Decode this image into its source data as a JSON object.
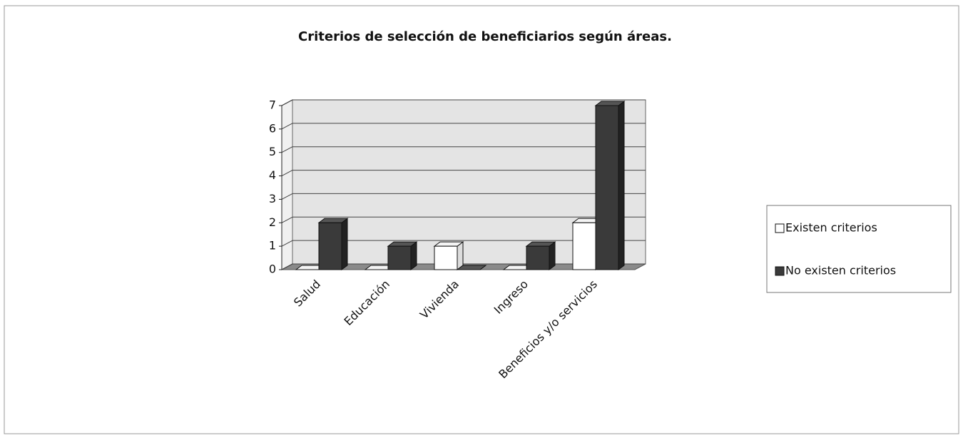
{
  "chart_data": {
    "type": "bar3d",
    "title": "Criterios de selección de beneficiarios según áreas.",
    "categories": [
      "Salud",
      "Educación",
      "Vivienda",
      "Ingreso",
      "Beneficios y/o servicios"
    ],
    "series": [
      {
        "name": "Existen criterios",
        "color": "#ffffff",
        "values": [
          0,
          0,
          1,
          0,
          2
        ]
      },
      {
        "name": "No existen criterios",
        "color": "#3a3a3a",
        "values": [
          2,
          1,
          0,
          1,
          7
        ]
      }
    ],
    "ylim": [
      0,
      7
    ],
    "yticks": [
      0,
      1,
      2,
      3,
      4,
      5,
      6,
      7
    ],
    "grid": true,
    "legend": "right"
  }
}
